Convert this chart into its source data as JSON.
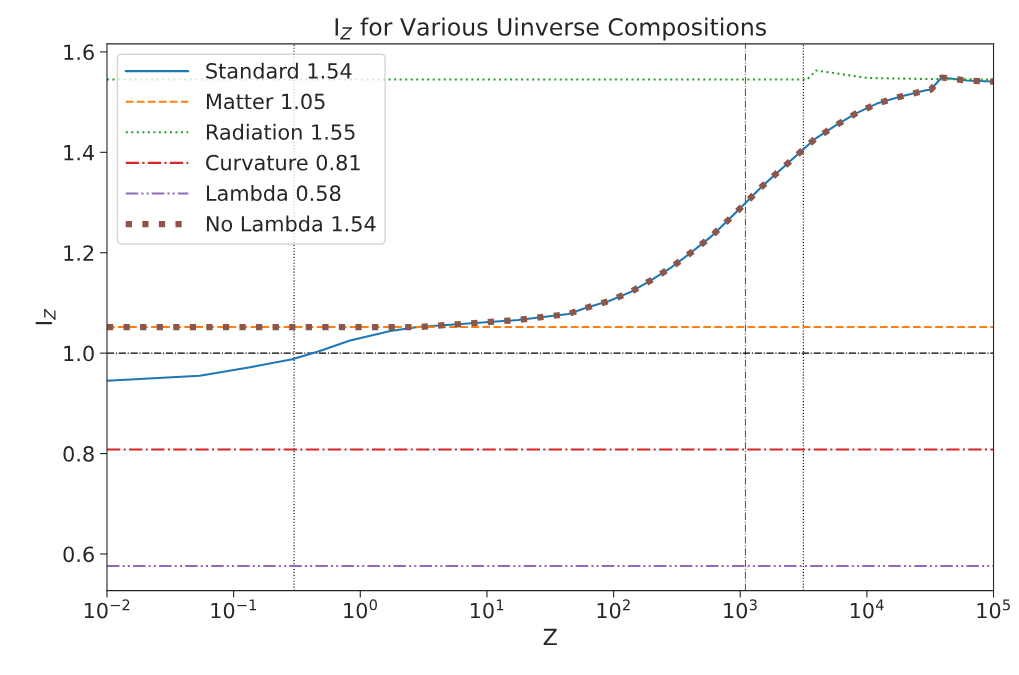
{
  "chart_data": {
    "type": "line",
    "title": "I$_{Z}$ for Various Uinverse Compositions",
    "xlabel": "Z",
    "ylabel": "I$_{Z}$",
    "log": "x",
    "xlim": [
      0.01,
      100000
    ],
    "ylim": [
      0.527,
      1.616
    ],
    "xticks": [
      {
        "value": 0.01,
        "label": "10$^{−2}$"
      },
      {
        "value": 0.1,
        "label": "10$^{−1}$"
      },
      {
        "value": 1,
        "label": "10$^{0}$"
      },
      {
        "value": 10,
        "label": "10$^{1}$"
      },
      {
        "value": 100,
        "label": "10$^{2}$"
      },
      {
        "value": 1000,
        "label": "10$^{3}$"
      },
      {
        "value": 10000,
        "label": "10$^{4}$"
      },
      {
        "value": 100000,
        "label": "10$^{5}$"
      }
    ],
    "yticks": [
      {
        "value": 0.6,
        "label": "0.6"
      },
      {
        "value": 0.8,
        "label": "0.8"
      },
      {
        "value": 1.0,
        "label": "1.0"
      },
      {
        "value": 1.2,
        "label": "1.2"
      },
      {
        "value": 1.4,
        "label": "1.4"
      },
      {
        "value": 1.6,
        "label": "1.6"
      }
    ],
    "grid": false,
    "legend": "top left",
    "series": [
      {
        "name": "Standard 1.54",
        "color": "#1f77b4",
        "line_style": "solid",
        "x": [
          0.01,
          0.054,
          0.135,
          0.29,
          0.46,
          0.83,
          1.73,
          2.84,
          7.1,
          17.6,
          44,
          60,
          92,
          137,
          200,
          290,
          407,
          575,
          790,
          1080,
          1470,
          2030,
          2820,
          3900,
          5640,
          8130,
          12000,
          18500,
          28700,
          32000,
          39000,
          61600,
          96000,
          100000
        ],
        "values": [
          0.945,
          0.955,
          0.972,
          0.988,
          1.003,
          1.025,
          1.044,
          1.052,
          1.059,
          1.066,
          1.078,
          1.09,
          1.104,
          1.122,
          1.146,
          1.172,
          1.2,
          1.23,
          1.263,
          1.297,
          1.331,
          1.363,
          1.395,
          1.427,
          1.453,
          1.477,
          1.497,
          1.511,
          1.523,
          1.525,
          1.549,
          1.543,
          1.541,
          1.541
        ]
      },
      {
        "name": "Matter 1.05",
        "color": "#ff7f0e",
        "line_style": "dashed",
        "x": [
          0.01,
          100000
        ],
        "values": [
          1.052,
          1.052
        ]
      },
      {
        "name": "Radiation 1.55",
        "color": "#2ca02c",
        "line_style": "dotted",
        "x": [
          0.01,
          3370,
          3980,
          10200,
          30000,
          100000
        ],
        "values": [
          1.545,
          1.545,
          1.563,
          1.548,
          1.546,
          1.545
        ]
      },
      {
        "name": "Curvature 0.81",
        "color": "#d62728",
        "line_style": "dashdot",
        "x": [
          0.01,
          100000
        ],
        "values": [
          0.808,
          0.808
        ]
      },
      {
        "name": "Lambda 0.58",
        "color": "#9467bd",
        "line_style": "dashdotdot",
        "x": [
          0.01,
          100000
        ],
        "values": [
          0.576,
          0.576
        ]
      },
      {
        "name": "No Lambda 1.54",
        "color": "#8c564b",
        "line_style": "dotted",
        "x": [
          0.01,
          2.84,
          7.1,
          17.6,
          44,
          60,
          92,
          137,
          200,
          290,
          407,
          575,
          790,
          1080,
          1470,
          2030,
          2820,
          3900,
          5640,
          8130,
          12000,
          18500,
          28700,
          32000,
          39000,
          61600,
          96000,
          100000
        ],
        "values": [
          1.052,
          1.052,
          1.059,
          1.066,
          1.078,
          1.09,
          1.104,
          1.122,
          1.146,
          1.172,
          1.2,
          1.23,
          1.263,
          1.297,
          1.331,
          1.363,
          1.395,
          1.427,
          1.453,
          1.477,
          1.497,
          1.511,
          1.523,
          1.525,
          1.549,
          1.543,
          1.541,
          1.541
        ]
      }
    ],
    "ref_lines": [
      {
        "axis": "x",
        "value": 0.3,
        "color": "#000000",
        "line_style": "dotted"
      },
      {
        "axis": "x",
        "value": 1100,
        "color": "#d62728",
        "line_style": "dashdot"
      },
      {
        "axis": "x",
        "value": 3150,
        "color": "#000000",
        "line_style": "dotted"
      },
      {
        "axis": "y",
        "value": 1.0,
        "color": "#000000",
        "line_style": "dashdot"
      }
    ]
  }
}
